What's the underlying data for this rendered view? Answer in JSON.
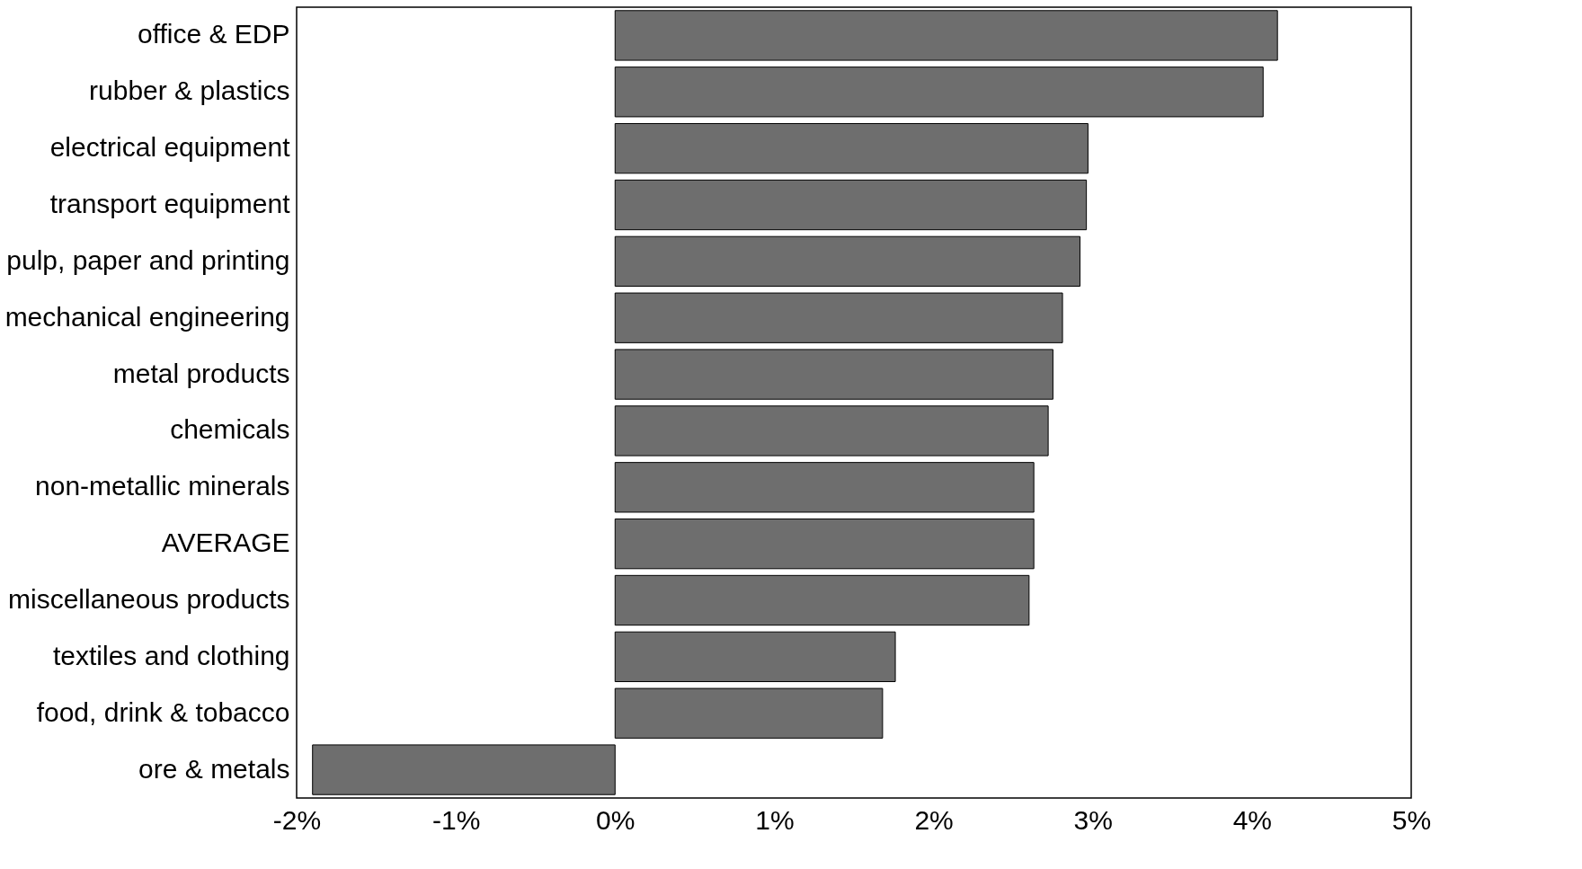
{
  "chart_data": {
    "type": "bar",
    "orientation": "horizontal",
    "categories": [
      "office & EDP",
      "rubber & plastics",
      "electrical equipment",
      "transport equipment",
      "pulp, paper and printing",
      "mechanical engineering",
      "metal products",
      "chemicals",
      "non-metallic minerals",
      "AVERAGE",
      "miscellaneous products",
      "textiles and clothing",
      "food, drink & tobacco",
      "ore & metals"
    ],
    "values": [
      4.16,
      4.07,
      2.97,
      2.96,
      2.92,
      2.81,
      2.75,
      2.72,
      2.63,
      2.63,
      2.6,
      1.76,
      1.68,
      -1.9
    ],
    "color": "#6e6e6e",
    "xlim": [
      -2,
      5
    ],
    "xticks": [
      {
        "value": -2,
        "label": "-2%"
      },
      {
        "value": -1,
        "label": "-1%"
      },
      {
        "value": 0,
        "label": "0%"
      },
      {
        "value": 1,
        "label": "1%"
      },
      {
        "value": 2,
        "label": "2%"
      },
      {
        "value": 3,
        "label": "3%"
      },
      {
        "value": 4,
        "label": "4%"
      },
      {
        "value": 5,
        "label": "5%"
      }
    ],
    "grid": false
  }
}
